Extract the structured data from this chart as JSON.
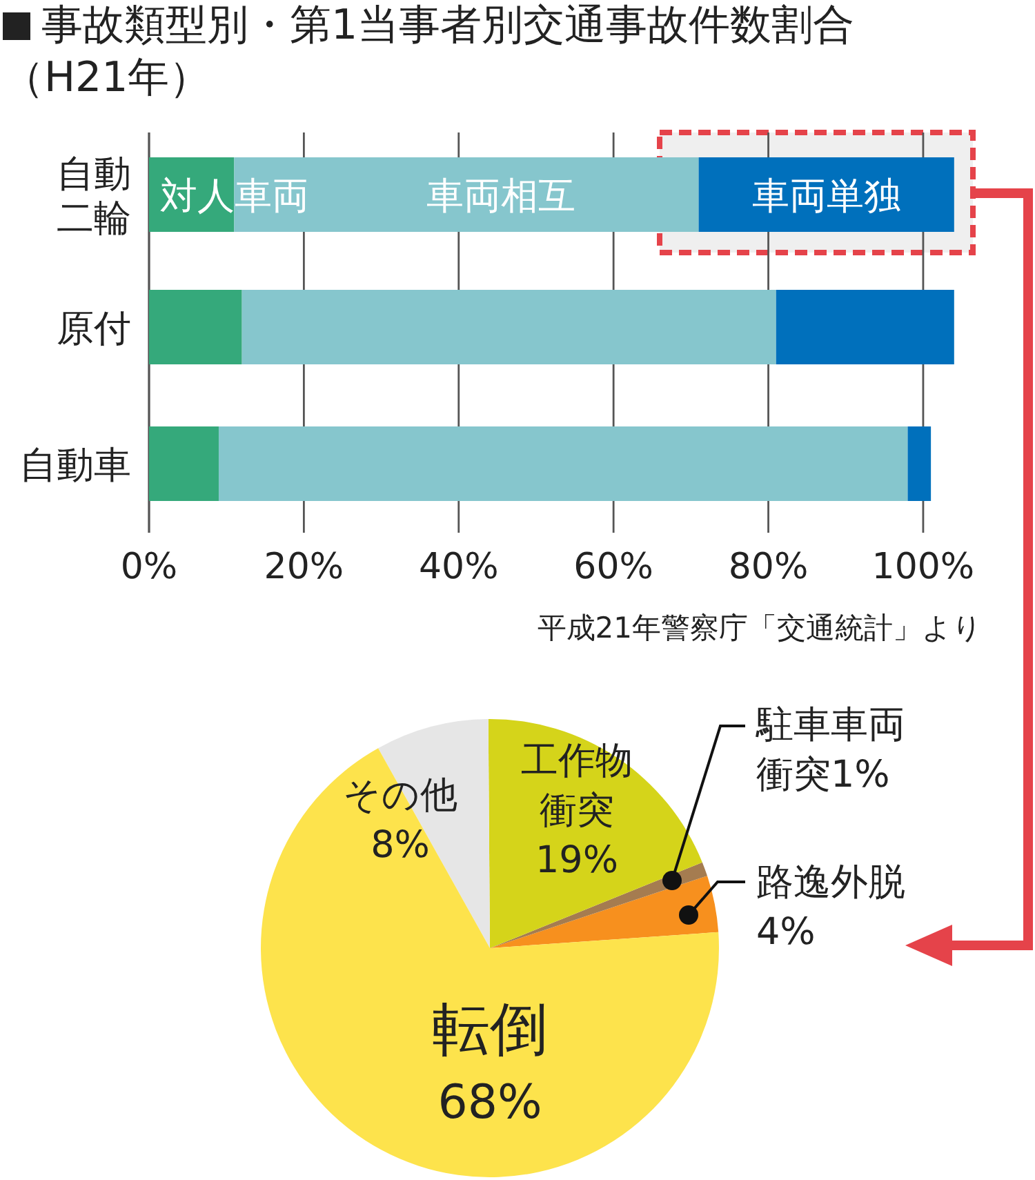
{
  "chart_data": [
    {
      "type": "bar",
      "orientation": "horizontal",
      "stacked": true,
      "title": "事故類型別・第1当事者別交通事故件数割合（H21年）",
      "categories": [
        "自動二輪",
        "原付",
        "自動車"
      ],
      "series": [
        {
          "name": "対人車両",
          "color": "#35a97b",
          "values": [
            11,
            12,
            9
          ]
        },
        {
          "name": "車両相互",
          "color": "#86c6cd",
          "values": [
            60,
            69,
            89
          ]
        },
        {
          "name": "車両単独",
          "color": "#0070bc",
          "values": [
            33,
            23,
            3
          ]
        }
      ],
      "xlim": [
        0,
        104
      ],
      "xticks": [
        {
          "value": 0,
          "label": "0%"
        },
        {
          "value": 20,
          "label": "20%"
        },
        {
          "value": 40,
          "label": "40%"
        },
        {
          "value": 60,
          "label": "60%"
        },
        {
          "value": 80,
          "label": "80%"
        },
        {
          "value": 100,
          "label": "100%"
        }
      ],
      "grid": "x",
      "annotations": [
        "平成21年警察庁「交通統計」より"
      ]
    },
    {
      "type": "pie",
      "categories": [
        "路逸外脱",
        "駐車車両衝突",
        "工作物衝突",
        "その他",
        "転倒"
      ],
      "values": [
        4,
        1,
        19,
        8,
        68
      ],
      "colors": [
        "#f7901e",
        "#a57c50",
        "#d5d41a",
        "#e6e6e6",
        "#fde34c"
      ],
      "value_labels": [
        "4%",
        "1%",
        "19%",
        "8%",
        "68%"
      ]
    }
  ]
}
